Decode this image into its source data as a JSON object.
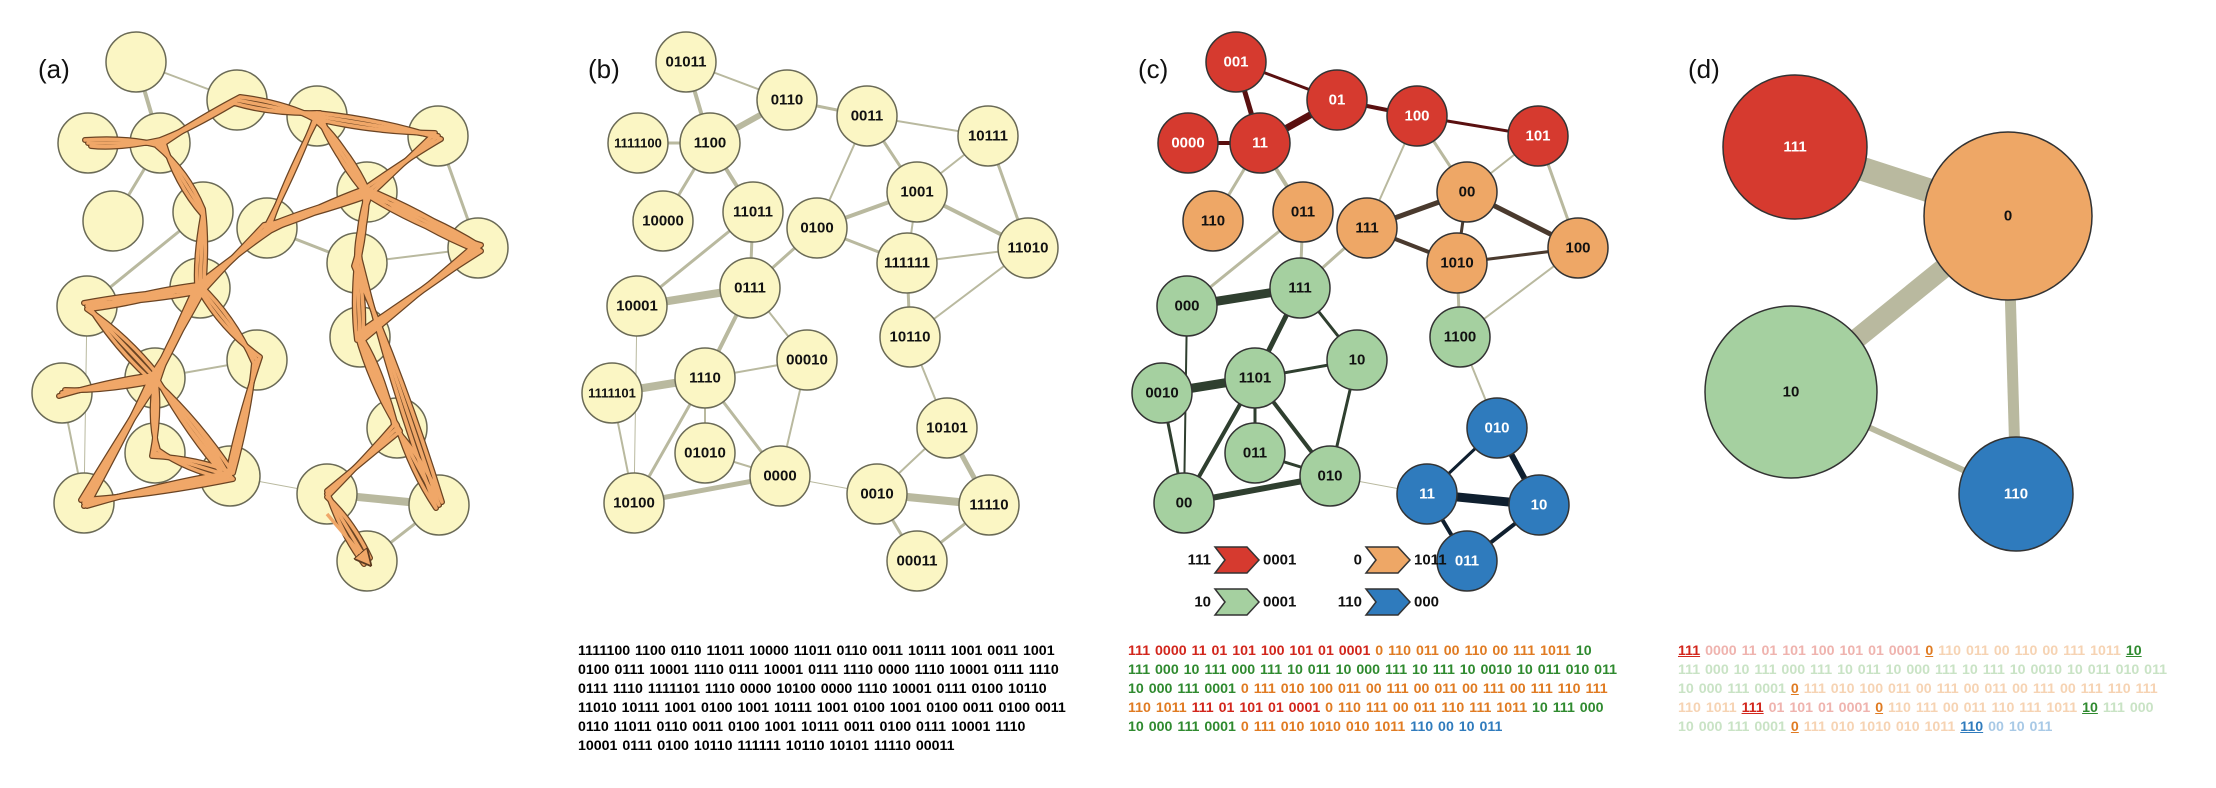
{
  "panels": {
    "a": {
      "label": "(a)"
    },
    "b": {
      "label": "(b)",
      "nodes": [
        "01011",
        "0110",
        "1111100",
        "1100",
        "0011",
        "10111",
        "10000",
        "11011",
        "1001",
        "0100",
        "111111",
        "11010",
        "10001",
        "0111",
        "00010",
        "10110",
        "1111101",
        "1110",
        "01010",
        "10101",
        "0000",
        "10100",
        "0010",
        "11110",
        "00011"
      ],
      "sequence": [
        "1111100",
        "1100",
        "0110",
        "11011",
        "10000",
        "11011",
        "0110",
        "0011",
        "10111",
        "1001",
        "0011",
        "1001",
        "0100",
        "0111",
        "10001",
        "1110",
        "0111",
        "10001",
        "0111",
        "1110",
        "0000",
        "1110",
        "10001",
        "0111",
        "1110",
        "0111",
        "1110",
        "1111101",
        "1110",
        "0000",
        "10100",
        "0000",
        "1110",
        "10001",
        "0111",
        "0100",
        "10110",
        "11010",
        "10111",
        "1001",
        "0100",
        "1001",
        "10111",
        "1001",
        "0100",
        "1001",
        "0100",
        "0011",
        "0100",
        "0011",
        "0110",
        "11011",
        "0110",
        "0011",
        "0100",
        "1001",
        "10111",
        "0011",
        "0100",
        "0111",
        "10001",
        "1110",
        "10001",
        "0111",
        "0100",
        "10110",
        "111111",
        "10110",
        "10101",
        "11110",
        "00011"
      ]
    },
    "c": {
      "label": "(c)",
      "nodes": [
        "001",
        "01",
        "0000",
        "11",
        "100",
        "101",
        "110",
        "011",
        "00",
        "111",
        "1010",
        "100",
        "000",
        "111",
        "10",
        "1100",
        "0010",
        "1101",
        "011",
        "010",
        "010",
        "00",
        "11",
        "10",
        "011"
      ],
      "legend": [
        {
          "left": "111",
          "right": "0001",
          "color": "#d63a2f"
        },
        {
          "left": "0",
          "right": "1011",
          "color": "#eea766"
        },
        {
          "left": "10",
          "right": "0001",
          "color": "#a5d0a0"
        },
        {
          "left": "110",
          "right": "000",
          "color": "#2f7bbd"
        }
      ],
      "sequence": [
        {
          "t": "111 0000 11 01 101 100 101 01 0001",
          "c": "red"
        },
        {
          "t": "0 110 011 00 110 00 111 1011",
          "c": "orange"
        },
        {
          "t": "10 111 000 10 111 000 111 10 011 10 000 111 10 111 10 0010 10 011 010 011 10 000 111 0001",
          "c": "green"
        },
        {
          "t": "0 111 010 100 011 00 111 00 011 00 111 00 111 110 111 110 1011",
          "c": "orange"
        },
        {
          "t": "111 01 101 01 0001",
          "c": "red"
        },
        {
          "t": "0 110 111 00 011 110 111 1011",
          "c": "orange"
        },
        {
          "t": "10 111 000 10 000 111 0001",
          "c": "green"
        },
        {
          "t": "0 111 010 1010 010 1011",
          "c": "orange"
        },
        {
          "t": "110 00 10 011",
          "c": "blue"
        }
      ]
    },
    "d": {
      "label": "(d)",
      "nodes": [
        "111",
        "0",
        "10",
        "110"
      ],
      "sequence": [
        {
          "t": "111",
          "c": "red",
          "hl": true
        },
        {
          "t": "0000 11 01 101 100 101 01 0001",
          "c": "red"
        },
        {
          "t": "0",
          "c": "orange",
          "hl": true
        },
        {
          "t": "110 011 00 110 00 111 1011",
          "c": "orange"
        },
        {
          "t": "10",
          "c": "green",
          "hl": true
        },
        {
          "t": "111 000 10 111 000 111 10 011 10 000 111 10 111 10 0010 10 011 010 011 10 000 111 0001",
          "c": "green"
        },
        {
          "t": "0",
          "c": "orange",
          "hl": true
        },
        {
          "t": "111 010 100 011 00 111 00 011 00 111 00 111 110 111 110 1011",
          "c": "orange"
        },
        {
          "t": "111",
          "c": "red",
          "hl": true
        },
        {
          "t": "01 101 01 0001",
          "c": "red"
        },
        {
          "t": "0",
          "c": "orange",
          "hl": true
        },
        {
          "t": "110 111 00 011 110 111 1011",
          "c": "orange"
        },
        {
          "t": "10",
          "c": "green",
          "hl": true
        },
        {
          "t": "111 000 10 000 111 0001",
          "c": "green"
        },
        {
          "t": "0",
          "c": "orange",
          "hl": true
        },
        {
          "t": "111 010 1010 010 1011",
          "c": "orange"
        },
        {
          "t": "110",
          "c": "blue",
          "hl": true
        },
        {
          "t": "00 10 011",
          "c": "blue"
        }
      ]
    }
  },
  "colors": {
    "node_fill": "#fbf6c4",
    "edge": "#b9b99f",
    "trajectory": "#f0a768",
    "red": "#d63a2f",
    "orange": "#eea766",
    "green": "#a5d0a0",
    "blue": "#2f7bbd",
    "seq_red": "#d2261c",
    "seq_orange": "#e07b22",
    "seq_green": "#2f8a2f",
    "seq_blue": "#2f7bbd",
    "faded_red": "#efb3ae",
    "faded_orange": "#f6d3b3",
    "faded_green": "#c9e3c5",
    "faded_blue": "#a8c9e6"
  }
}
